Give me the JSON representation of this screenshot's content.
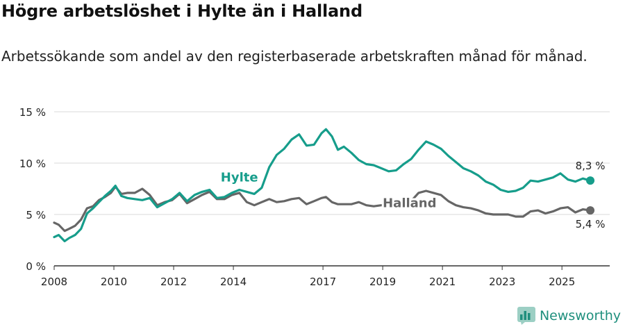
{
  "title": "Högre arbetslöshet i Hylte än i Halland",
  "subtitle": "Arbetssökande som andel av den registerbaserade arbetskraften månad för månad.",
  "brand": "Newsworthy",
  "colors": {
    "hylte": "#169d8b",
    "halland": "#666666",
    "grid": "#d9d9d9",
    "axis": "#333333"
  },
  "chart_data": {
    "type": "line",
    "title": "Högre arbetslöshet i Hylte än i Halland",
    "xlabel": "",
    "ylabel": "",
    "ylim": [
      0,
      15
    ],
    "xlim": [
      2008,
      2026.6
    ],
    "yticks": [
      0,
      5,
      10,
      15
    ],
    "ytick_labels": [
      "0 %",
      "5 %",
      "10 %",
      "15 %"
    ],
    "xticks": [
      2008,
      2010,
      2012,
      2014,
      2017,
      2019,
      2021,
      2023,
      2025
    ],
    "xtick_labels": [
      "2008",
      "2010",
      "2012",
      "2014",
      "2017",
      "2019",
      "2021",
      "2023",
      "2025"
    ],
    "series": [
      {
        "name": "Hylte",
        "label": "Hylte",
        "end_label": "8,3 %",
        "x": [
          2008.0,
          2008.15,
          2008.35,
          2008.5,
          2008.7,
          2008.9,
          2009.1,
          2009.3,
          2009.5,
          2009.7,
          2009.9,
          2010.05,
          2010.25,
          2010.45,
          2010.7,
          2010.95,
          2011.2,
          2011.45,
          2011.7,
          2011.95,
          2012.2,
          2012.45,
          2012.7,
          2012.95,
          2013.2,
          2013.45,
          2013.7,
          2013.95,
          2014.2,
          2014.45,
          2014.7,
          2014.95,
          2015.2,
          2015.45,
          2015.7,
          2015.95,
          2016.2,
          2016.45,
          2016.7,
          2016.95,
          2017.1,
          2017.3,
          2017.5,
          2017.7,
          2017.95,
          2018.2,
          2018.45,
          2018.7,
          2018.95,
          2019.2,
          2019.45,
          2019.7,
          2019.95,
          2020.2,
          2020.45,
          2020.7,
          2020.95,
          2021.2,
          2021.45,
          2021.7,
          2021.95,
          2022.2,
          2022.45,
          2022.7,
          2022.95,
          2023.2,
          2023.45,
          2023.7,
          2023.95,
          2024.2,
          2024.45,
          2024.7,
          2024.95,
          2025.2,
          2025.45,
          2025.7,
          2025.95
        ],
        "values": [
          2.8,
          3.0,
          2.4,
          2.7,
          3.0,
          3.6,
          5.1,
          5.6,
          6.2,
          6.8,
          7.3,
          7.8,
          6.8,
          6.6,
          6.5,
          6.4,
          6.6,
          5.7,
          6.1,
          6.5,
          7.1,
          6.3,
          6.9,
          7.2,
          7.4,
          6.6,
          6.7,
          7.1,
          7.4,
          7.2,
          7.0,
          7.6,
          9.6,
          10.8,
          11.4,
          12.3,
          12.8,
          11.7,
          11.8,
          12.9,
          13.3,
          12.6,
          11.3,
          11.6,
          11.0,
          10.3,
          9.9,
          9.8,
          9.5,
          9.2,
          9.3,
          9.9,
          10.4,
          11.3,
          12.1,
          11.8,
          11.4,
          10.7,
          10.1,
          9.5,
          9.2,
          8.8,
          8.2,
          7.9,
          7.4,
          7.2,
          7.3,
          7.6,
          8.3,
          8.2,
          8.4,
          8.6,
          9.0,
          8.4,
          8.2,
          8.5,
          8.3
        ]
      },
      {
        "name": "Halland",
        "label": "Halland",
        "end_label": "5,4 %",
        "x": [
          2008.0,
          2008.15,
          2008.35,
          2008.5,
          2008.7,
          2008.9,
          2009.1,
          2009.3,
          2009.5,
          2009.7,
          2009.9,
          2010.05,
          2010.25,
          2010.45,
          2010.7,
          2010.95,
          2011.2,
          2011.45,
          2011.7,
          2011.95,
          2012.2,
          2012.45,
          2012.7,
          2012.95,
          2013.2,
          2013.45,
          2013.7,
          2013.95,
          2014.2,
          2014.45,
          2014.7,
          2014.95,
          2015.2,
          2015.45,
          2015.7,
          2015.95,
          2016.2,
          2016.45,
          2016.7,
          2016.95,
          2017.1,
          2017.3,
          2017.5,
          2017.7,
          2017.95,
          2018.2,
          2018.45,
          2018.7,
          2018.95,
          2019.2,
          2019.45,
          2019.7,
          2019.95,
          2020.2,
          2020.45,
          2020.7,
          2020.95,
          2021.2,
          2021.45,
          2021.7,
          2021.95,
          2022.2,
          2022.45,
          2022.7,
          2022.95,
          2023.2,
          2023.45,
          2023.7,
          2023.95,
          2024.2,
          2024.45,
          2024.7,
          2024.95,
          2025.2,
          2025.45,
          2025.7,
          2025.95
        ],
        "values": [
          4.2,
          4.0,
          3.4,
          3.6,
          3.9,
          4.5,
          5.6,
          5.8,
          6.4,
          6.7,
          7.1,
          7.7,
          7.0,
          7.1,
          7.1,
          7.5,
          6.9,
          5.9,
          6.2,
          6.4,
          7.0,
          6.1,
          6.5,
          6.9,
          7.2,
          6.5,
          6.5,
          6.9,
          7.1,
          6.2,
          5.9,
          6.2,
          6.5,
          6.2,
          6.3,
          6.5,
          6.6,
          6.0,
          6.3,
          6.6,
          6.7,
          6.2,
          6.0,
          6.0,
          6.0,
          6.2,
          5.9,
          5.8,
          5.9,
          5.9,
          5.8,
          5.8,
          6.3,
          7.1,
          7.3,
          7.1,
          6.9,
          6.3,
          5.9,
          5.7,
          5.6,
          5.4,
          5.1,
          5.0,
          5.0,
          5.0,
          4.8,
          4.8,
          5.3,
          5.4,
          5.1,
          5.3,
          5.6,
          5.7,
          5.2,
          5.5,
          5.4
        ]
      }
    ]
  }
}
